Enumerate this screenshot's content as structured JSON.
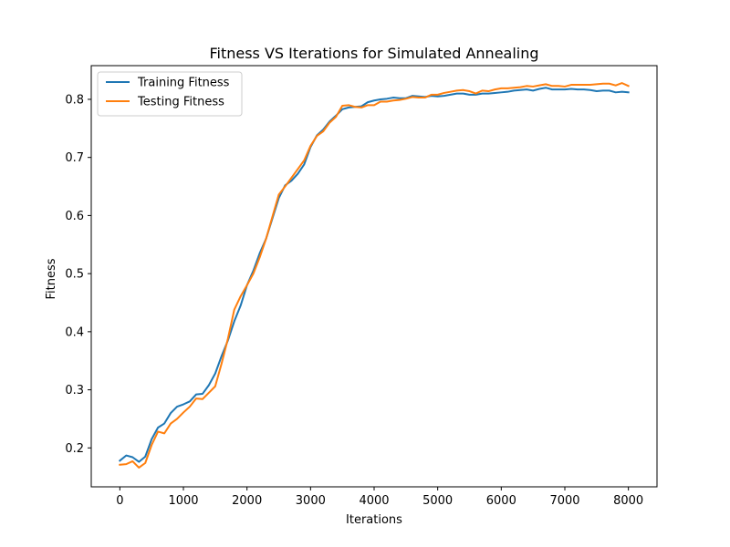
{
  "chart_data": {
    "type": "line",
    "title": "Fitness VS Iterations for Simulated Annealing",
    "xlabel": "Iterations",
    "ylabel": "Fitness",
    "xlim": [
      -450,
      8450
    ],
    "ylim": [
      0.133,
      0.858
    ],
    "xticks": [
      0,
      1000,
      2000,
      3000,
      4000,
      5000,
      6000,
      7000,
      8000
    ],
    "yticks": [
      0.2,
      0.3,
      0.4,
      0.5,
      0.6,
      0.7,
      0.8
    ],
    "xtick_labels": [
      "0",
      "1000",
      "2000",
      "3000",
      "4000",
      "5000",
      "6000",
      "7000",
      "8000"
    ],
    "ytick_labels": [
      "0.2",
      "0.3",
      "0.4",
      "0.5",
      "0.6",
      "0.7",
      "0.8"
    ],
    "grid": false,
    "legend_position": "top-left",
    "x": [
      0,
      100,
      200,
      300,
      400,
      500,
      600,
      700,
      800,
      900,
      1000,
      1100,
      1200,
      1300,
      1400,
      1500,
      1600,
      1700,
      1800,
      1900,
      2000,
      2100,
      2200,
      2300,
      2400,
      2500,
      2600,
      2700,
      2800,
      2900,
      3000,
      3100,
      3200,
      3300,
      3400,
      3500,
      3600,
      3700,
      3800,
      3900,
      4000,
      4100,
      4200,
      4300,
      4400,
      4500,
      4600,
      4700,
      4800,
      4900,
      5000,
      5100,
      5200,
      5300,
      5400,
      5500,
      5600,
      5700,
      5800,
      5900,
      6000,
      6100,
      6200,
      6300,
      6400,
      6500,
      6600,
      6700,
      6800,
      6900,
      7000,
      7100,
      7200,
      7300,
      7400,
      7500,
      7600,
      7700,
      7800,
      7900,
      8000
    ],
    "series": [
      {
        "name": "Training Fitness",
        "color": "#1f77b4",
        "values": [
          0.178,
          0.187,
          0.184,
          0.176,
          0.185,
          0.215,
          0.235,
          0.242,
          0.26,
          0.271,
          0.275,
          0.28,
          0.292,
          0.293,
          0.308,
          0.328,
          0.358,
          0.385,
          0.418,
          0.445,
          0.48,
          0.505,
          0.535,
          0.56,
          0.595,
          0.63,
          0.652,
          0.66,
          0.672,
          0.688,
          0.718,
          0.738,
          0.748,
          0.762,
          0.772,
          0.783,
          0.786,
          0.787,
          0.788,
          0.795,
          0.798,
          0.8,
          0.801,
          0.803,
          0.802,
          0.802,
          0.806,
          0.805,
          0.804,
          0.806,
          0.805,
          0.806,
          0.808,
          0.81,
          0.81,
          0.808,
          0.808,
          0.81,
          0.81,
          0.811,
          0.812,
          0.813,
          0.815,
          0.816,
          0.817,
          0.815,
          0.818,
          0.82,
          0.817,
          0.817,
          0.817,
          0.818,
          0.817,
          0.817,
          0.816,
          0.814,
          0.815,
          0.815,
          0.812,
          0.813,
          0.812
        ]
      },
      {
        "name": "Testing Fitness",
        "color": "#ff7f0e",
        "values": [
          0.171,
          0.172,
          0.177,
          0.166,
          0.174,
          0.205,
          0.228,
          0.225,
          0.242,
          0.25,
          0.261,
          0.271,
          0.285,
          0.284,
          0.295,
          0.306,
          0.345,
          0.388,
          0.438,
          0.461,
          0.48,
          0.5,
          0.528,
          0.56,
          0.598,
          0.636,
          0.65,
          0.665,
          0.68,
          0.695,
          0.72,
          0.737,
          0.745,
          0.76,
          0.77,
          0.789,
          0.79,
          0.787,
          0.786,
          0.79,
          0.79,
          0.796,
          0.796,
          0.798,
          0.799,
          0.801,
          0.804,
          0.803,
          0.803,
          0.808,
          0.808,
          0.811,
          0.813,
          0.815,
          0.816,
          0.814,
          0.81,
          0.815,
          0.814,
          0.817,
          0.819,
          0.819,
          0.82,
          0.821,
          0.823,
          0.822,
          0.824,
          0.826,
          0.823,
          0.823,
          0.822,
          0.825,
          0.825,
          0.825,
          0.825,
          0.826,
          0.827,
          0.827,
          0.824,
          0.828,
          0.823
        ]
      }
    ]
  }
}
